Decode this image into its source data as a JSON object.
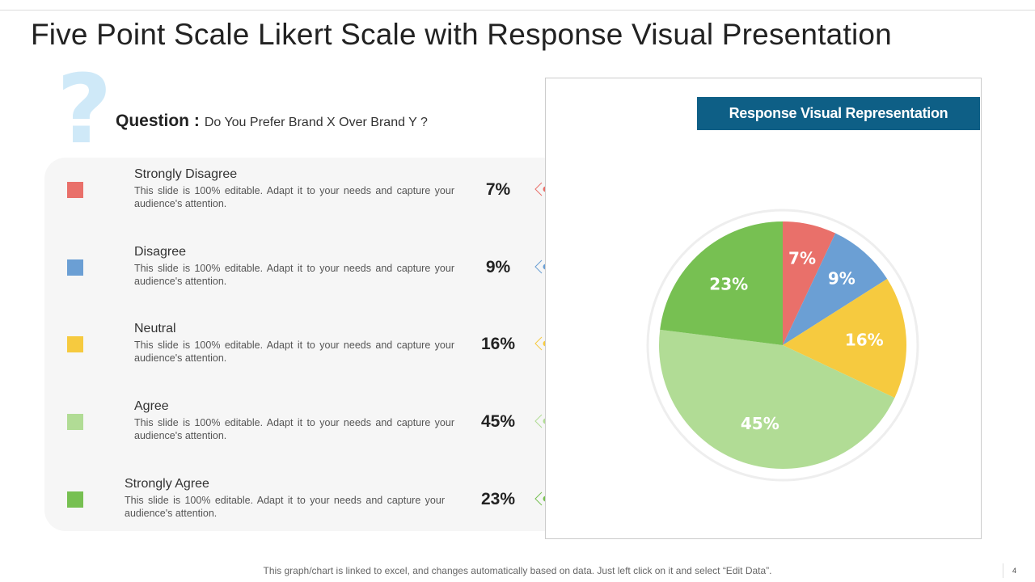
{
  "title": "Five Point Scale Likert Scale with Response Visual Presentation",
  "question": {
    "label": "Question :",
    "text": "Do You Prefer Brand X Over Brand Y ?",
    "icon": "question-mark-icon"
  },
  "items": [
    {
      "label": "Strongly Disagree",
      "desc": "This slide is 100% editable. Adapt it to your needs and capture your audience's attention.",
      "pct": "7%",
      "color": "#e9706a"
    },
    {
      "label": "Disagree",
      "desc": "This slide is 100% editable. Adapt it to your needs and capture your audience's attention.",
      "pct": "9%",
      "color": "#6b9fd4"
    },
    {
      "label": "Neutral",
      "desc": "This slide is 100% editable. Adapt it to your needs and capture your audience's attention.",
      "pct": "16%",
      "color": "#f6ca3f"
    },
    {
      "label": "Agree",
      "desc": "This slide is 100% editable. Adapt it to your needs and capture your audience's attention.",
      "pct": "45%",
      "color": "#b1dc95"
    },
    {
      "label": "Strongly Agree",
      "desc": "This slide is 100% editable. Adapt it to your needs and capture your audience's attention.",
      "pct": "23%",
      "color": "#77c052"
    }
  ],
  "chart_header": "Response Visual Representation",
  "chart_data": {
    "type": "pie",
    "categories": [
      "Strongly Disagree",
      "Disagree",
      "Neutral",
      "Agree",
      "Strongly Agree"
    ],
    "values": [
      7,
      9,
      16,
      45,
      23
    ],
    "labels": [
      "7%",
      "9%",
      "16%",
      "45%",
      "23%"
    ],
    "colors": [
      "#e9706a",
      "#6b9fd4",
      "#f6ca3f",
      "#b1dc95",
      "#77c052"
    ],
    "start": "top",
    "direction": "clockwise"
  },
  "footer": "This graph/chart is linked to excel, and changes automatically based on data. Just left click on it and select “Edit Data”.",
  "page_number": "4"
}
